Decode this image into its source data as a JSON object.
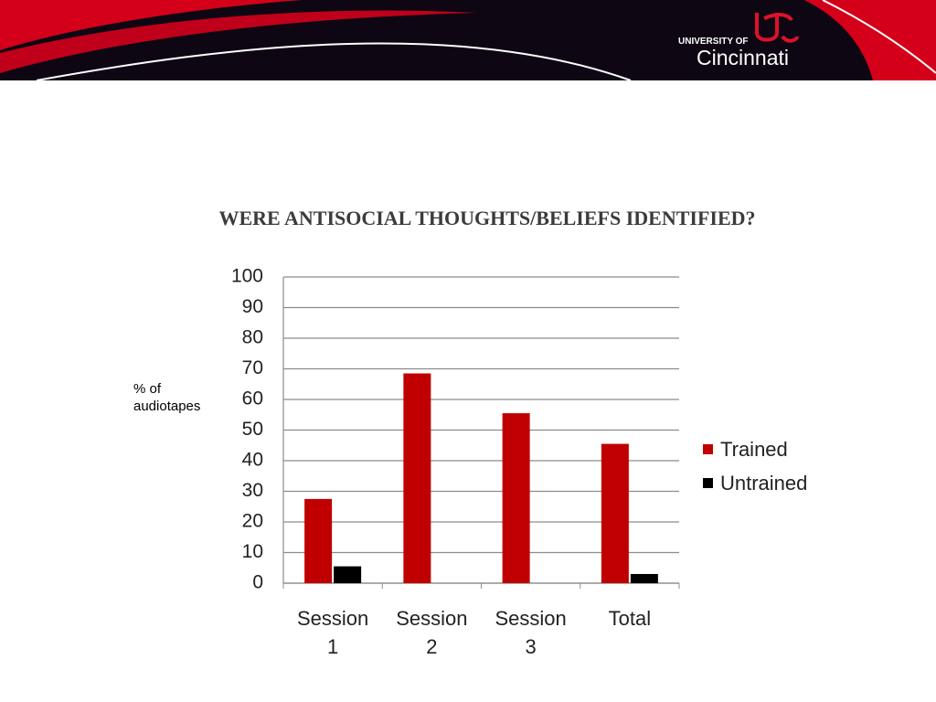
{
  "header": {
    "logo_small": "UNIVERSITY OF",
    "logo_large": "Cincinnati"
  },
  "chart_data": {
    "type": "bar",
    "title": "WERE ANTISOCIAL THOUGHTS/BELIEFS IDENTIFIED?",
    "y_label": "% of audiotapes",
    "categories": [
      "Session 1",
      "Session 2",
      "Session 3",
      "Total"
    ],
    "series": [
      {
        "name": "Trained",
        "color": "#c00000",
        "values": [
          27.5,
          68.5,
          55.5,
          45.5
        ]
      },
      {
        "name": "Untrained",
        "color": "#000000",
        "values": [
          5.5,
          0,
          0,
          3
        ]
      }
    ],
    "ylim": [
      0,
      100
    ],
    "yticks": [
      0,
      10,
      20,
      30,
      40,
      50,
      60,
      70,
      80,
      90,
      100
    ],
    "grid": true,
    "legend": "right"
  }
}
